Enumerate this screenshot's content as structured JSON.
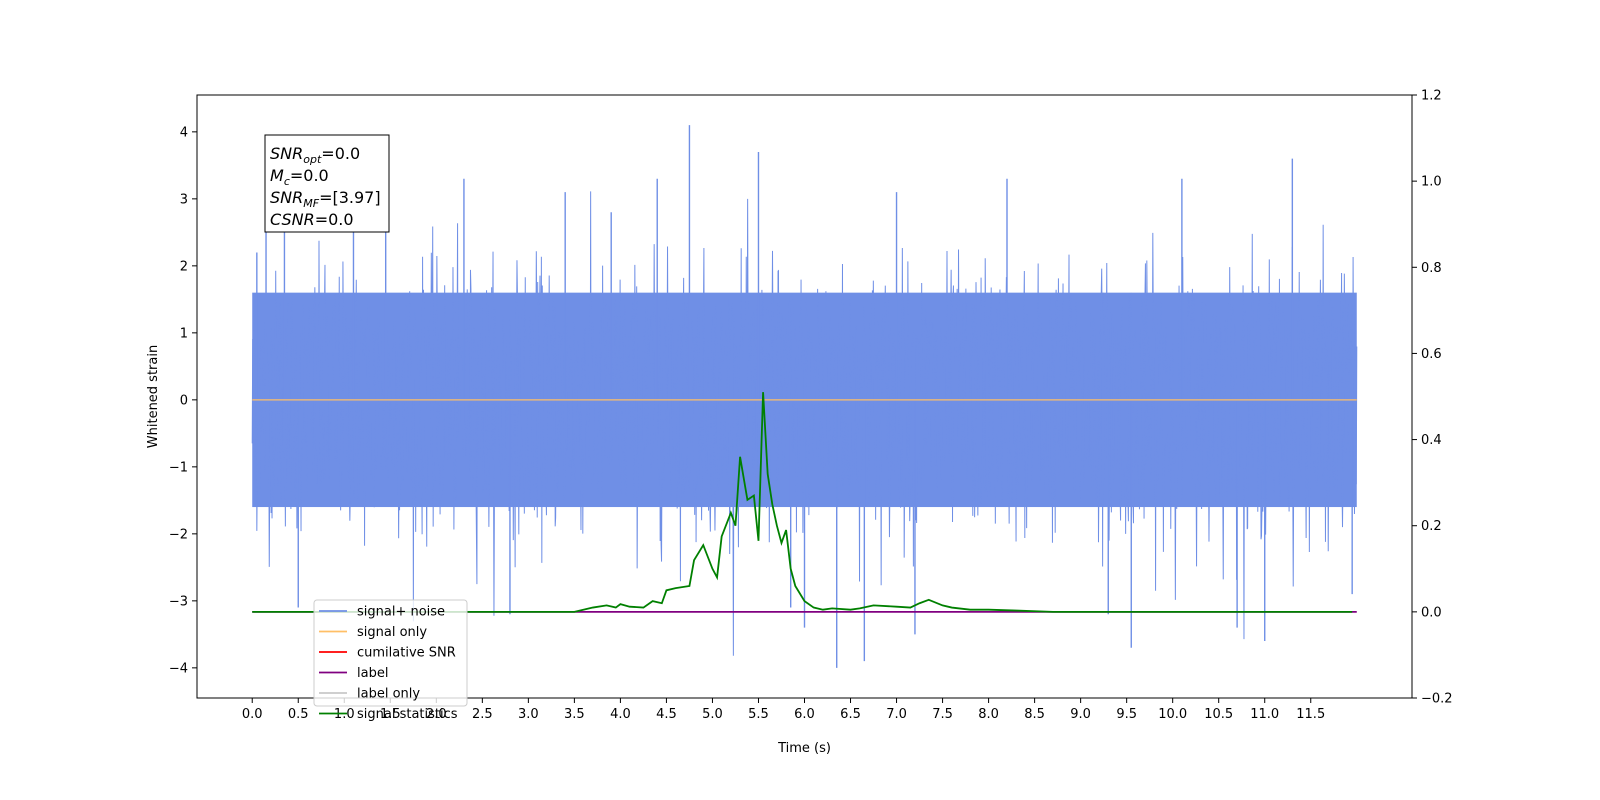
{
  "chart_data": {
    "type": "line",
    "title": "",
    "xlabel": "Time (s)",
    "ylabel": "Whitened strain",
    "xlim": [
      -0.6,
      12.6
    ],
    "ylim": [
      -4.45,
      4.55
    ],
    "y2lim": [
      -0.2,
      1.2
    ],
    "grid": false,
    "legend_placement": "lower-left",
    "x_ticks": [
      "0.0",
      "0.5",
      "1.0",
      "1.5",
      "2.0",
      "2.5",
      "3.0",
      "3.5",
      "4.0",
      "4.5",
      "5.0",
      "5.5",
      "6.0",
      "6.5",
      "7.0",
      "7.5",
      "8.0",
      "8.5",
      "9.0",
      "9.5",
      "10.0",
      "10.5",
      "11.0",
      "11.5"
    ],
    "y_ticks": [
      "4",
      "3",
      "2",
      "1",
      "0",
      "−1",
      "−2",
      "−3",
      "−4"
    ],
    "y2_ticks": [
      "1.2",
      "1.0",
      "0.8",
      "0.6",
      "0.4",
      "0.2",
      "0.0",
      "−0.2"
    ],
    "annotation": {
      "lines": [
        {
          "main": "SNR",
          "sub": "opt",
          "value": "=0.0"
        },
        {
          "main": "M",
          "sub": "c",
          "value": "=0.0"
        },
        {
          "main": "SNR",
          "sub": "MF",
          "value": "=[3.97]"
        },
        {
          "main": "CSNR",
          "sub": "",
          "value": "=0.0"
        }
      ]
    },
    "legend": [
      {
        "label": "signal+ noise",
        "color": "#6f8fe6"
      },
      {
        "label": "signal only",
        "color": "#ffbf66"
      },
      {
        "label": "cumilative SNR",
        "color": "#ff0000"
      },
      {
        "label": "label",
        "color": "#800080"
      },
      {
        "label": "label only",
        "color": "#c8c8c8"
      },
      {
        "label": "signal statistics",
        "color": "#008000"
      }
    ],
    "series": [
      {
        "name": "signal+ noise",
        "axis": "left",
        "color": "#6f8fe6",
        "x_range": [
          0.0,
          12.0
        ],
        "envelope_min": -1.6,
        "envelope_max": 1.6,
        "spikes": [
          {
            "x": 0.05,
            "y": 2.2
          },
          {
            "x": 0.15,
            "y": 3.1
          },
          {
            "x": 0.35,
            "y": 3.0
          },
          {
            "x": 0.5,
            "y": -3.1
          },
          {
            "x": 1.1,
            "y": 2.9
          },
          {
            "x": 1.45,
            "y": 3.1
          },
          {
            "x": 2.3,
            "y": 3.3
          },
          {
            "x": 2.8,
            "y": -3.2
          },
          {
            "x": 3.4,
            "y": 3.1
          },
          {
            "x": 3.9,
            "y": 2.8
          },
          {
            "x": 4.4,
            "y": 3.3
          },
          {
            "x": 4.75,
            "y": 4.1
          },
          {
            "x": 5.5,
            "y": 3.7
          },
          {
            "x": 5.85,
            "y": -3.1
          },
          {
            "x": 6.0,
            "y": -3.4
          },
          {
            "x": 6.35,
            "y": -4.0
          },
          {
            "x": 6.65,
            "y": -3.9
          },
          {
            "x": 7.0,
            "y": 3.1
          },
          {
            "x": 7.2,
            "y": -3.5
          },
          {
            "x": 8.2,
            "y": 3.3
          },
          {
            "x": 9.3,
            "y": -3.2
          },
          {
            "x": 9.55,
            "y": -3.7
          },
          {
            "x": 10.1,
            "y": 3.3
          },
          {
            "x": 10.7,
            "y": -3.4
          },
          {
            "x": 11.0,
            "y": -3.6
          },
          {
            "x": 11.3,
            "y": 3.6
          },
          {
            "x": 11.95,
            "y": -2.9
          }
        ]
      },
      {
        "name": "signal only",
        "axis": "left",
        "color": "#ffbf66",
        "x": [
          0.0,
          12.0
        ],
        "y": [
          0.0,
          0.0
        ]
      },
      {
        "name": "label",
        "axis": "right",
        "color": "#800080",
        "x": [
          0.0,
          12.0
        ],
        "y": [
          0.0,
          0.0
        ]
      },
      {
        "name": "signal statistics",
        "axis": "right",
        "color": "#008000",
        "x": [
          0.0,
          1.0,
          2.0,
          3.0,
          3.5,
          3.7,
          3.85,
          3.95,
          4.0,
          4.1,
          4.25,
          4.35,
          4.45,
          4.5,
          4.6,
          4.75,
          4.8,
          4.9,
          5.0,
          5.05,
          5.1,
          5.2,
          5.25,
          5.3,
          5.38,
          5.45,
          5.5,
          5.55,
          5.6,
          5.65,
          5.7,
          5.75,
          5.8,
          5.85,
          5.9,
          6.0,
          6.1,
          6.2,
          6.3,
          6.5,
          6.6,
          6.75,
          7.0,
          7.15,
          7.25,
          7.35,
          7.5,
          7.6,
          7.8,
          8.0,
          8.3,
          8.7,
          9.0,
          10.0,
          11.0,
          11.95
        ],
        "y": [
          0.0,
          0.0,
          0.0,
          0.0,
          0.0,
          0.01,
          0.015,
          0.01,
          0.018,
          0.012,
          0.01,
          0.025,
          0.02,
          0.05,
          0.055,
          0.06,
          0.12,
          0.155,
          0.1,
          0.08,
          0.175,
          0.23,
          0.2,
          0.36,
          0.26,
          0.27,
          0.165,
          0.51,
          0.32,
          0.25,
          0.2,
          0.16,
          0.19,
          0.1,
          0.06,
          0.025,
          0.01,
          0.005,
          0.008,
          0.005,
          0.008,
          0.015,
          0.012,
          0.01,
          0.02,
          0.028,
          0.015,
          0.01,
          0.005,
          0.005,
          0.003,
          0.0,
          0.0,
          0.0,
          0.0,
          0.0
        ]
      }
    ]
  }
}
